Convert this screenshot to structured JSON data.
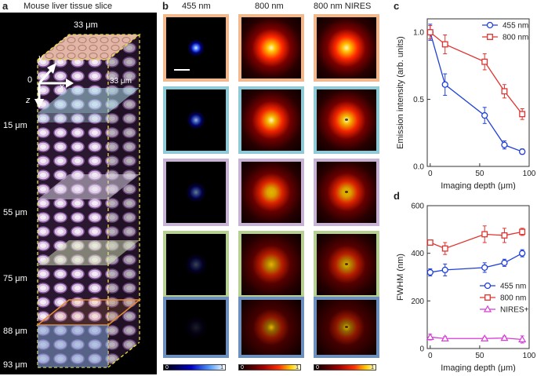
{
  "panel_letters": {
    "a": "a",
    "b": "b",
    "c": "c",
    "d": "d"
  },
  "panel_a": {
    "title": "Mouse liver tissue slice",
    "top_label": "33 μm",
    "side_label": "33 μm",
    "axis_y": "y",
    "axis_x": "x",
    "axis_z": "z",
    "origin": "0",
    "depths": [
      "15 μm",
      "55 μm",
      "75 μm",
      "88 μm",
      "93 μm"
    ]
  },
  "panel_b": {
    "columns": [
      "455 nm",
      "800 nm",
      "800 nm NIRES"
    ],
    "row_border_colors": [
      "#f2b98f",
      "#8fcad6",
      "#c7b3d3",
      "#b8cf93",
      "#6c8fbd"
    ],
    "colorbar_min": "0",
    "colorbar_max": "1"
  },
  "colors": {
    "blue": "#1f3fd8",
    "red": "#e0332f",
    "magenta": "#d63bd6"
  },
  "chart_data": [
    {
      "type": "line",
      "xlabel": "Imaging depth (μm)",
      "ylabel": "Emission intensity (arb. units)",
      "xlim": [
        -3,
        100
      ],
      "ylim": [
        0,
        1.1
      ],
      "xticks": [
        0,
        50,
        100
      ],
      "yticks": [
        0.0,
        0.5,
        1.0
      ],
      "ytick_labels": [
        "0.0",
        "0.5",
        "1.0"
      ],
      "legend_position": "top-right",
      "series": [
        {
          "name": "455 nm",
          "color": "#1f3fd8",
          "marker": "circle",
          "x": [
            0,
            15,
            55,
            75,
            93
          ],
          "y": [
            1.0,
            0.61,
            0.38,
            0.16,
            0.11
          ],
          "err": [
            0.06,
            0.08,
            0.06,
            0.03,
            0.02
          ]
        },
        {
          "name": "800 nm",
          "color": "#e0332f",
          "marker": "square",
          "x": [
            0,
            15,
            55,
            75,
            93
          ],
          "y": [
            1.0,
            0.91,
            0.78,
            0.56,
            0.39
          ],
          "err": [
            0.05,
            0.07,
            0.06,
            0.05,
            0.04
          ]
        }
      ]
    },
    {
      "type": "line",
      "xlabel": "Imaging depth (μm)",
      "ylabel": "FWHM (nm)",
      "xlim": [
        -3,
        100
      ],
      "ylim": [
        0,
        600
      ],
      "xticks": [
        0,
        50,
        100
      ],
      "yticks": [
        0,
        200,
        400,
        600
      ],
      "legend_position": "center-right",
      "series": [
        {
          "name": "455 nm",
          "color": "#1f3fd8",
          "marker": "circle",
          "x": [
            0,
            15,
            55,
            75,
            93
          ],
          "y": [
            320,
            330,
            340,
            360,
            400
          ],
          "err": [
            15,
            25,
            20,
            15,
            15
          ]
        },
        {
          "name": "800 nm",
          "color": "#e0332f",
          "marker": "square",
          "x": [
            0,
            15,
            55,
            75,
            93
          ],
          "y": [
            445,
            420,
            480,
            475,
            490
          ],
          "err": [
            10,
            25,
            35,
            30,
            15
          ]
        },
        {
          "name": "NIRES+",
          "color": "#d63bd6",
          "marker": "triangle",
          "x": [
            0,
            15,
            55,
            75,
            93
          ],
          "y": [
            48,
            42,
            42,
            44,
            38
          ],
          "err": [
            12,
            8,
            6,
            8,
            15
          ]
        }
      ]
    }
  ]
}
